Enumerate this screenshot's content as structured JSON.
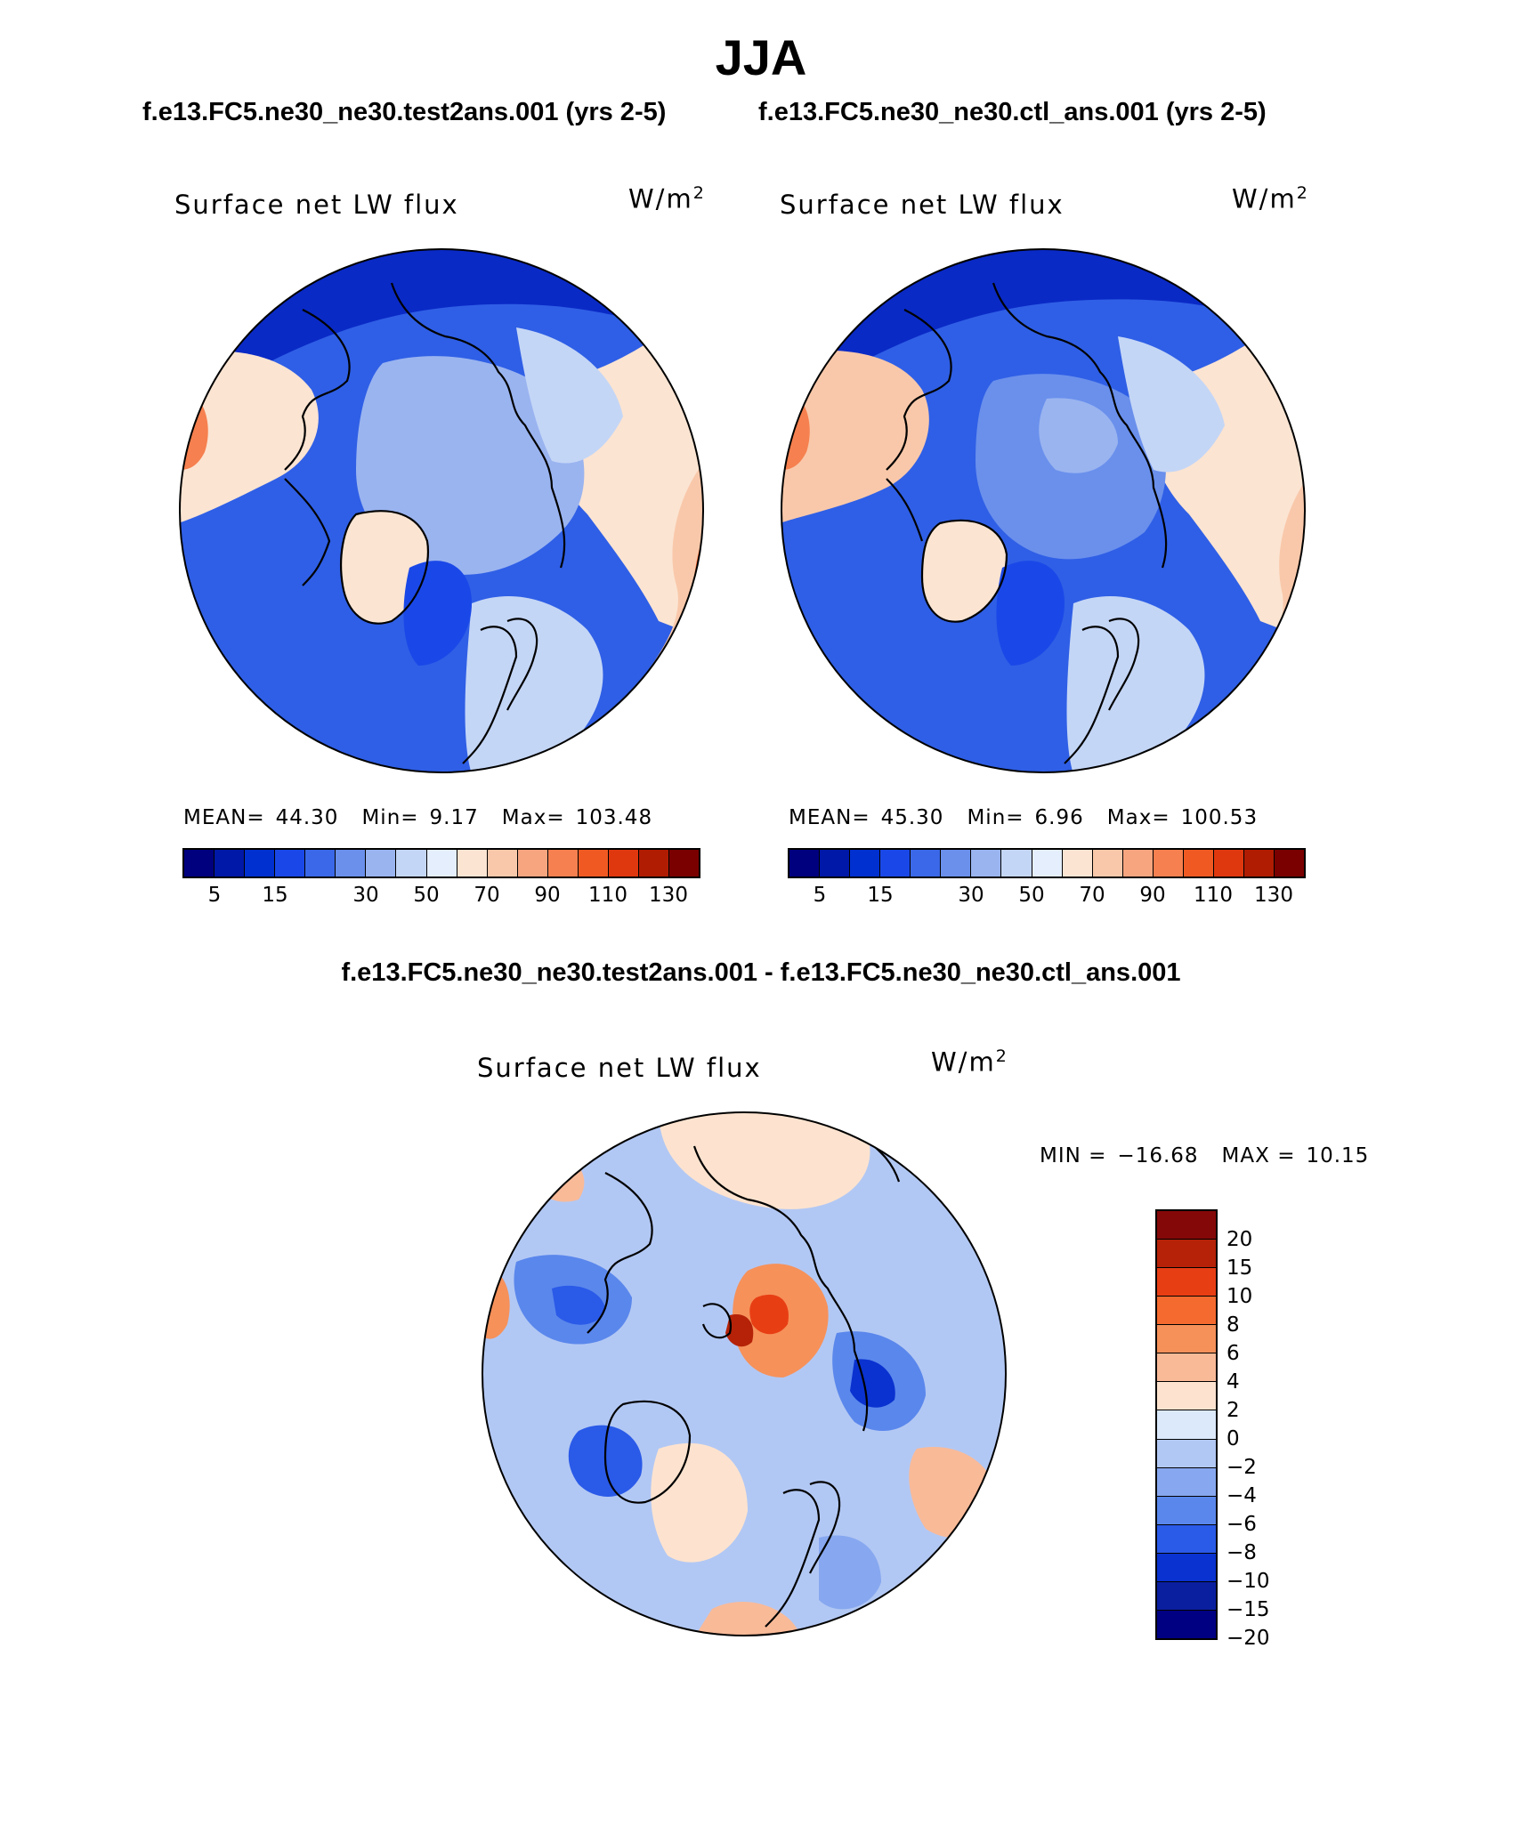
{
  "figure": {
    "season": "JJA",
    "test_case_title": "f.e13.FC5.ne30_ne30.test2ans.001 (yrs 2-5)",
    "ctl_case_title": "f.e13.FC5.ne30_ne30.ctl_ans.001 (yrs 2-5)",
    "diff_title": "f.e13.FC5.ne30_ne30.test2ans.001 - f.e13.FC5.ne30_ne30.ctl_ans.001"
  },
  "colors": {
    "abs_palette": [
      "#00007f",
      "#0018a8",
      "#0030d0",
      "#1a48e8",
      "#3a68e8",
      "#6a90ec",
      "#9ab4f0",
      "#c4d6f6",
      "#e4eefc",
      "#fbe4d2",
      "#f9c8aa",
      "#f7a57f",
      "#f6804f",
      "#f05a22",
      "#e0380e",
      "#b01c02",
      "#7a0000"
    ],
    "diff_palette_top_to_bottom": [
      "#850808",
      "#b52208",
      "#e83e14",
      "#f56a2e",
      "#f6915a",
      "#f9ba98",
      "#fde3cf",
      "#dbe9fb",
      "#b2c8f4",
      "#87a8f0",
      "#5a87ec",
      "#2a5ae8",
      "#0a32d0",
      "#0a1ea0",
      "#000082"
    ],
    "coast": "#000000"
  },
  "chart_data": [
    {
      "type": "heatmap",
      "projection": "north-polar-stereographic",
      "label": "Surface net LW flux",
      "units": "W/m",
      "units_exp": "2",
      "stats": {
        "mean_label": "MEAN=",
        "mean": "44.30",
        "min_label": "Min=",
        "min": "9.17",
        "max_label": "Max=",
        "max": "103.48"
      },
      "colorbar_levels": [
        5,
        10,
        15,
        20,
        25,
        30,
        40,
        50,
        60,
        70,
        80,
        90,
        100,
        110,
        120,
        130
      ],
      "colorbar_ticks": [
        "5",
        "15",
        "30",
        "50",
        "70",
        "90",
        "110",
        "130"
      ]
    },
    {
      "type": "heatmap",
      "projection": "north-polar-stereographic",
      "label": "Surface net LW flux",
      "units": "W/m",
      "units_exp": "2",
      "stats": {
        "mean_label": "MEAN=",
        "mean": "45.30",
        "min_label": "Min=",
        "min": "6.96",
        "max_label": "Max=",
        "max": "100.53"
      },
      "colorbar_levels": [
        5,
        10,
        15,
        20,
        25,
        30,
        40,
        50,
        60,
        70,
        80,
        90,
        100,
        110,
        120,
        130
      ],
      "colorbar_ticks": [
        "5",
        "15",
        "30",
        "50",
        "70",
        "90",
        "110",
        "130"
      ]
    },
    {
      "type": "heatmap",
      "projection": "north-polar-stereographic",
      "label": "Surface net LW flux",
      "units": "W/m",
      "units_exp": "2",
      "stats": {
        "min_label": "MIN =",
        "min": "−16.68",
        "max_label": "MAX =",
        "max": "10.15"
      },
      "colorbar_levels": [
        20,
        15,
        10,
        8,
        6,
        4,
        2,
        0,
        -2,
        -4,
        -6,
        -8,
        -10,
        -15,
        -20
      ],
      "colorbar_ticks": [
        "20",
        "15",
        "10",
        "8",
        "6",
        "4",
        "2",
        "0",
        "−2",
        "−4",
        "−6",
        "−8",
        "−10",
        "−15",
        "−20"
      ]
    }
  ]
}
